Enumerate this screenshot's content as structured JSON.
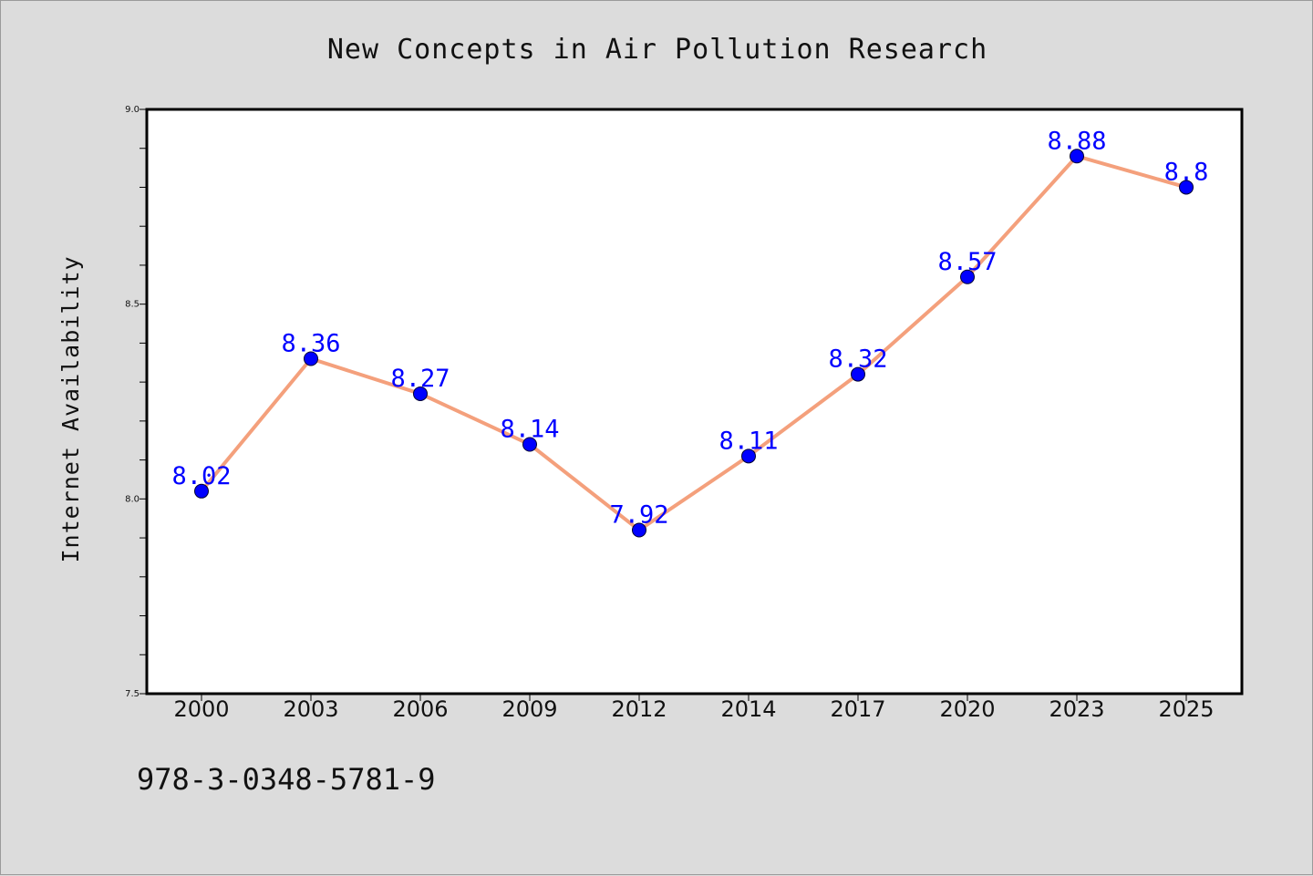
{
  "colors": {
    "background": "#dcdcdc",
    "plot_area": "#ffffff",
    "line": "#f4a07c",
    "marker": "#0000ff",
    "data_label": "#0000ff"
  },
  "footer": {
    "isbn": "978-3-0348-5781-9"
  },
  "chart_data": {
    "type": "line",
    "title": "New Concepts in Air Pollution Research",
    "xlabel": "",
    "ylabel": "Internet Availability",
    "categories": [
      "2000",
      "2003",
      "2006",
      "2009",
      "2012",
      "2014",
      "2017",
      "2020",
      "2023",
      "2025"
    ],
    "series": [
      {
        "values": [
          8.02,
          8.36,
          8.27,
          8.14,
          7.92,
          8.11,
          8.32,
          8.57,
          8.88,
          8.8
        ],
        "data_labels": [
          "8.02",
          "8.36",
          "8.27",
          "8.14",
          "7.92",
          "8.11",
          "8.32",
          "8.57",
          "8.88",
          "8.8"
        ]
      }
    ],
    "ylim": [
      7.5,
      9.0
    ],
    "yticks": [
      7.5,
      8.0,
      8.5,
      9.0
    ],
    "ytick_labels": [
      "7.5",
      "8.0",
      "8.5",
      "9.0"
    ],
    "grid": false,
    "legend": "none"
  }
}
